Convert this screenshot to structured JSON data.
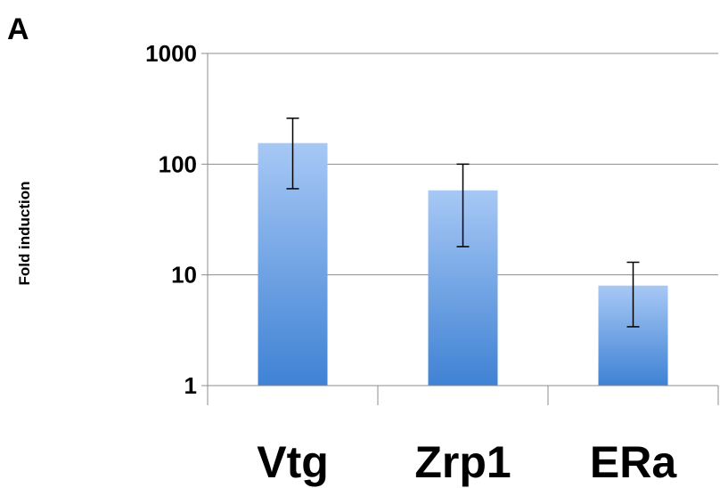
{
  "panel_label": "A",
  "chart_data": {
    "type": "bar",
    "title": "",
    "xlabel": "",
    "ylabel": "Fold induction",
    "y_scale": "log",
    "ylim": [
      1,
      1000
    ],
    "y_ticks": [
      1,
      10,
      100,
      1000
    ],
    "y_tick_labels": [
      "1",
      "10",
      "100",
      "1000"
    ],
    "grid": "horizontal",
    "legend": "none",
    "categories": [
      "Vtg",
      "Zrp1",
      "ERa"
    ],
    "series": [
      {
        "values": [
          155,
          58,
          8
        ],
        "error_low": [
          60,
          18,
          3.4
        ],
        "error_high": [
          260,
          100,
          13
        ],
        "color_top": "#a7c8f5",
        "color_bottom": "#3f82d4"
      }
    ]
  }
}
